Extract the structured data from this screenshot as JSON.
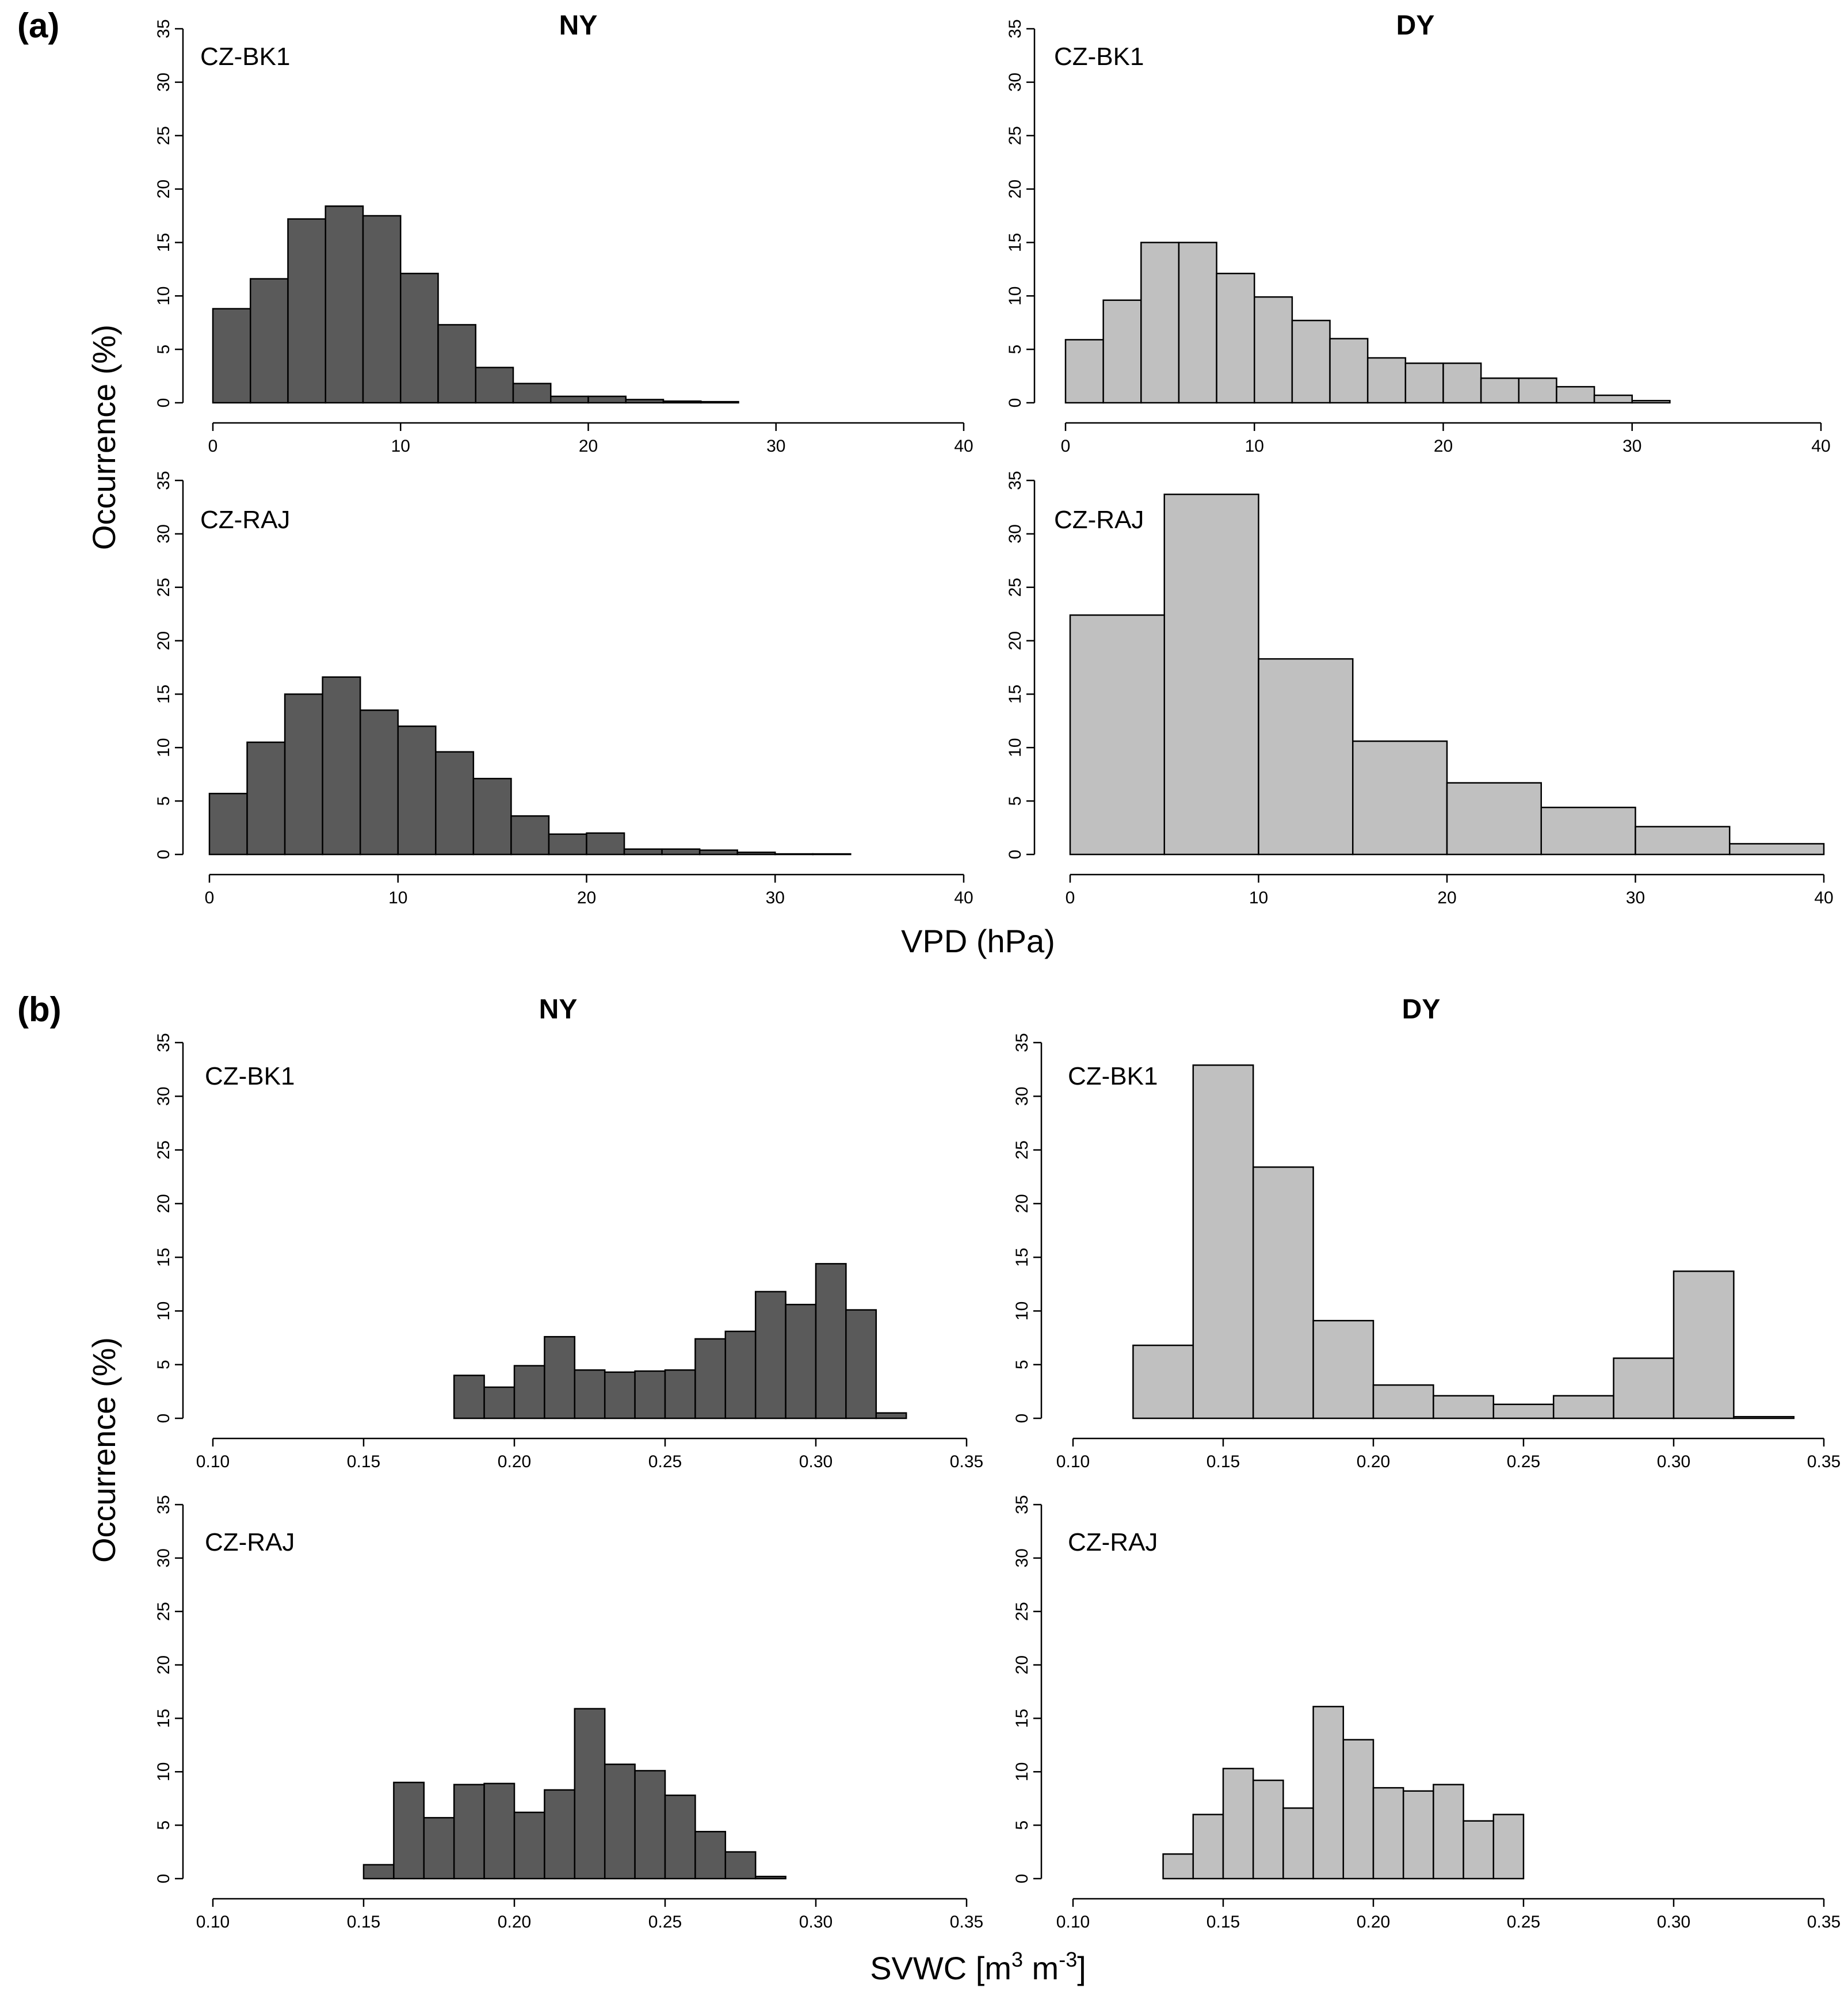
{
  "figure": {
    "panel_a": {
      "label": "(a)",
      "ylabel": "Occurrence (%)",
      "xlabel": "VPD (hPa)",
      "col_titles": [
        "NY",
        "DY"
      ]
    },
    "panel_b": {
      "label": "(b)",
      "ylabel": "Occurrence (%)",
      "xlabel_main": "SVWC [m",
      "xlabel_exp1": "3",
      "xlabel_mid": " m",
      "xlabel_exp2": "-3",
      "xlabel_end": "]",
      "col_titles": [
        "NY",
        "DY"
      ]
    }
  },
  "colors": {
    "ny": "#5a5a5a",
    "dy": "#c0c0c0",
    "axis": "#000000"
  },
  "chart_data": [
    {
      "type": "bar",
      "id": "a-ny-bk1",
      "panel": "(a)",
      "column": "NY",
      "site": "CZ-BK1",
      "variable": "VPD (hPa)",
      "bin_edges": [
        0,
        2,
        4,
        6,
        8,
        10,
        12,
        14,
        16,
        18,
        20,
        22,
        24,
        26,
        28
      ],
      "values": [
        8.8,
        11.6,
        17.2,
        18.4,
        17.5,
        12.1,
        7.3,
        3.3,
        1.8,
        0.6,
        0.6,
        0.3,
        0.15,
        0.1
      ],
      "xlim": [
        0,
        40
      ],
      "xticks": [
        0,
        10,
        20,
        30,
        40
      ],
      "xtick_labels": [
        "0",
        "10",
        "20",
        "30",
        "40"
      ],
      "ylim": [
        0,
        35
      ],
      "yticks": [
        0,
        5,
        10,
        15,
        20,
        25,
        30,
        35
      ]
    },
    {
      "type": "bar",
      "id": "a-dy-bk1",
      "panel": "(a)",
      "column": "DY",
      "site": "CZ-BK1",
      "variable": "VPD (hPa)",
      "bin_edges": [
        0,
        2,
        4,
        6,
        8,
        10,
        12,
        14,
        16,
        18,
        20,
        22,
        24,
        26,
        28,
        30,
        32
      ],
      "values": [
        5.9,
        9.6,
        15.0,
        15.0,
        12.1,
        9.9,
        7.7,
        6.0,
        4.2,
        3.7,
        3.7,
        2.3,
        2.3,
        1.5,
        0.7,
        0.2
      ],
      "xlim": [
        0,
        40
      ],
      "xticks": [
        0,
        10,
        20,
        30,
        40
      ],
      "xtick_labels": [
        "0",
        "10",
        "20",
        "30",
        "40"
      ],
      "ylim": [
        0,
        35
      ],
      "yticks": [
        0,
        5,
        10,
        15,
        20,
        25,
        30,
        35
      ]
    },
    {
      "type": "bar",
      "id": "a-ny-raj",
      "panel": "(a)",
      "column": "NY",
      "site": "CZ-RAJ",
      "variable": "VPD (hPa)",
      "bin_edges": [
        0,
        2,
        4,
        6,
        8,
        10,
        12,
        14,
        16,
        18,
        20,
        22,
        24,
        26,
        28,
        30,
        32,
        34
      ],
      "values": [
        5.7,
        10.5,
        15.0,
        16.6,
        13.5,
        12.0,
        9.6,
        7.1,
        3.6,
        1.9,
        2.0,
        0.5,
        0.5,
        0.4,
        0.2,
        0.05,
        0.05
      ],
      "xlim": [
        0,
        40
      ],
      "xticks": [
        0,
        10,
        20,
        30,
        40
      ],
      "xtick_labels": [
        "0",
        "10",
        "20",
        "30",
        "40"
      ],
      "ylim": [
        0,
        35
      ],
      "yticks": [
        0,
        5,
        10,
        15,
        20,
        25,
        30,
        35
      ]
    },
    {
      "type": "bar",
      "id": "a-dy-raj",
      "panel": "(a)",
      "column": "DY",
      "site": "CZ-RAJ",
      "variable": "VPD (hPa)",
      "bin_edges": [
        0,
        5,
        10,
        15,
        20,
        25,
        30,
        35,
        40
      ],
      "values": [
        22.4,
        33.7,
        18.3,
        10.6,
        6.7,
        4.4,
        2.6,
        1.0
      ],
      "xlim": [
        0,
        40
      ],
      "xticks": [
        0,
        10,
        20,
        30,
        40
      ],
      "xtick_labels": [
        "0",
        "10",
        "20",
        "30",
        "40"
      ],
      "ylim": [
        0,
        35
      ],
      "yticks": [
        0,
        5,
        10,
        15,
        20,
        25,
        30,
        35
      ]
    },
    {
      "type": "bar",
      "id": "b-ny-bk1",
      "panel": "(b)",
      "column": "NY",
      "site": "CZ-BK1",
      "variable": "SVWC [m3 m-3]",
      "bin_edges": [
        0.18,
        0.19,
        0.2,
        0.21,
        0.22,
        0.23,
        0.24,
        0.25,
        0.26,
        0.27,
        0.28,
        0.29,
        0.3,
        0.31,
        0.32,
        0.33
      ],
      "values": [
        4.0,
        2.9,
        4.9,
        7.6,
        4.5,
        4.3,
        4.4,
        4.5,
        7.4,
        8.1,
        11.8,
        10.6,
        14.4,
        10.1,
        0.5
      ],
      "xlim": [
        0.1,
        0.35
      ],
      "xticks": [
        0.1,
        0.15,
        0.2,
        0.25,
        0.3,
        0.35
      ],
      "xtick_labels": [
        "0.10",
        "0.15",
        "0.20",
        "0.25",
        "0.30",
        "0.35"
      ],
      "ylim": [
        0,
        35
      ],
      "yticks": [
        0,
        5,
        10,
        15,
        20,
        25,
        30,
        35
      ]
    },
    {
      "type": "bar",
      "id": "b-dy-bk1",
      "panel": "(b)",
      "column": "DY",
      "site": "CZ-BK1",
      "variable": "SVWC [m3 m-3]",
      "bin_edges": [
        0.12,
        0.14,
        0.16,
        0.18,
        0.2,
        0.22,
        0.24,
        0.26,
        0.28,
        0.3,
        0.32,
        0.34
      ],
      "values": [
        6.8,
        32.9,
        23.4,
        9.1,
        3.1,
        2.1,
        1.3,
        2.1,
        5.6,
        13.7,
        0.15
      ],
      "xlim": [
        0.1,
        0.35
      ],
      "xticks": [
        0.1,
        0.15,
        0.2,
        0.25,
        0.3,
        0.35
      ],
      "xtick_labels": [
        "0.10",
        "0.15",
        "0.20",
        "0.25",
        "0.30",
        "0.35"
      ],
      "ylim": [
        0,
        35
      ],
      "yticks": [
        0,
        5,
        10,
        15,
        20,
        25,
        30,
        35
      ]
    },
    {
      "type": "bar",
      "id": "b-ny-raj",
      "panel": "(b)",
      "column": "NY",
      "site": "CZ-RAJ",
      "variable": "SVWC [m3 m-3]",
      "bin_edges": [
        0.15,
        0.16,
        0.17,
        0.18,
        0.19,
        0.2,
        0.21,
        0.22,
        0.23,
        0.24,
        0.25,
        0.26,
        0.27,
        0.28,
        0.29
      ],
      "values": [
        1.3,
        9.0,
        5.7,
        8.8,
        8.9,
        6.2,
        8.3,
        15.9,
        10.7,
        10.1,
        7.8,
        4.4,
        2.5,
        0.2
      ],
      "xlim": [
        0.1,
        0.35
      ],
      "xticks": [
        0.1,
        0.15,
        0.2,
        0.25,
        0.3,
        0.35
      ],
      "xtick_labels": [
        "0.10",
        "0.15",
        "0.20",
        "0.25",
        "0.30",
        "0.35"
      ],
      "ylim": [
        0,
        35
      ],
      "yticks": [
        0,
        5,
        10,
        15,
        20,
        25,
        30,
        35
      ]
    },
    {
      "type": "bar",
      "id": "b-dy-raj",
      "panel": "(b)",
      "column": "DY",
      "site": "CZ-RAJ",
      "variable": "SVWC [m3 m-3]",
      "bin_edges": [
        0.13,
        0.14,
        0.15,
        0.16,
        0.17,
        0.18,
        0.19,
        0.2,
        0.21,
        0.22,
        0.23,
        0.24,
        0.25
      ],
      "values": [
        2.3,
        6.0,
        10.3,
        9.2,
        6.6,
        16.1,
        13.0,
        8.5,
        8.2,
        8.8,
        5.4,
        6.0
      ],
      "xlim": [
        0.1,
        0.35
      ],
      "xticks": [
        0.1,
        0.15,
        0.2,
        0.25,
        0.3,
        0.35
      ],
      "xtick_labels": [
        "0.10",
        "0.15",
        "0.20",
        "0.25",
        "0.30",
        "0.35"
      ],
      "ylim": [
        0,
        35
      ],
      "yticks": [
        0,
        5,
        10,
        15,
        20,
        25,
        30,
        35
      ]
    }
  ]
}
